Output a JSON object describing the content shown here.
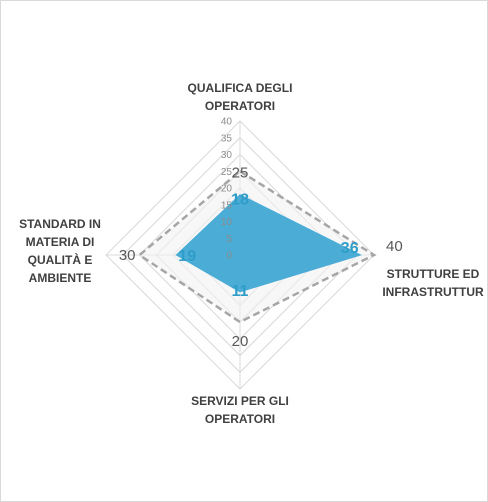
{
  "chart_data": {
    "type": "radar",
    "categories": [
      "QUALIFICA DEGLI OPERATORI",
      "STRUTTURE ED INFRASTRUTTURE",
      "SERVIZI PER GLI OPERATORI",
      "STANDARD IN MATERIA DI QUALITÀ E AMBIENTE"
    ],
    "category_lines": [
      [
        "QUALIFICA DEGLI",
        "OPERATORI"
      ],
      [
        "STRUTTURE ED",
        "INFRASTRUTTUR"
      ],
      [
        "SERVIZI PER GLI",
        "OPERATORI"
      ],
      [
        "STANDARD IN",
        "MATERIA DI",
        "QUALITÀ E",
        "AMBIENTE"
      ]
    ],
    "series": [
      {
        "values": [
          18,
          36,
          11,
          19
        ],
        "style": "filled",
        "color": "#4bacd6"
      },
      {
        "values": [
          25,
          40,
          20,
          30
        ],
        "style": "dashed",
        "color": "#a6a6a6"
      }
    ],
    "data_labels": {
      "actual": [
        "18",
        "36",
        "11",
        "19"
      ],
      "target": [
        "25",
        "40",
        "20",
        "30"
      ]
    },
    "ylim": [
      0,
      40
    ],
    "ticks": [
      0,
      5,
      10,
      15,
      20,
      25,
      30,
      35,
      40
    ],
    "grid": true,
    "colors": {
      "actual_fill": "#4bacd6",
      "actual_label": "#2e9dc8",
      "target_line": "#a6a6a6",
      "grid": "#d9d9d9"
    }
  }
}
